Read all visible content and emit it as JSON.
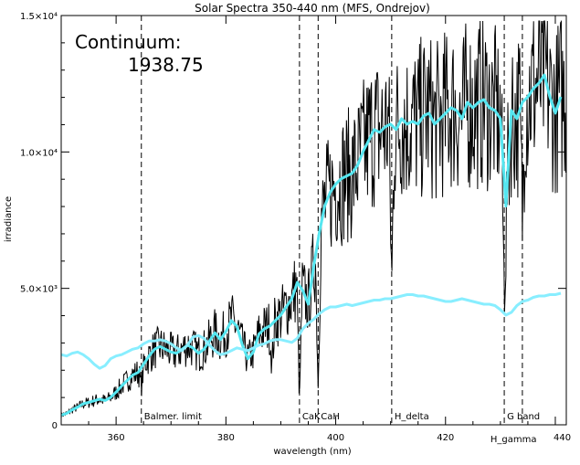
{
  "chart_data": {
    "type": "line",
    "title": "Solar Spectra 350-440 nm (MFS, Ondrejov)",
    "xlabel": "wavelength (nm)",
    "ylabel": "irradiance",
    "xlim": [
      350,
      442
    ],
    "ylim": [
      0,
      15000
    ],
    "xticks": [
      {
        "value": 360,
        "label": "360"
      },
      {
        "value": 380,
        "label": "380"
      },
      {
        "value": 400,
        "label": "400"
      },
      {
        "value": 420,
        "label": "420"
      },
      {
        "value": 440,
        "label": "440"
      }
    ],
    "yticks": [
      {
        "value": 0,
        "label": "0"
      },
      {
        "value": 5000,
        "label": "5.0×10³"
      },
      {
        "value": 10000,
        "label": "1.0×10⁴"
      },
      {
        "value": 15000,
        "label": "1.5×10⁴"
      }
    ],
    "annotation": {
      "line1": "Continuum:",
      "line2": "1938.75"
    },
    "markers": [
      {
        "x": 364.6,
        "label": "Balmer. limit"
      },
      {
        "x": 393.4,
        "label": "CaK"
      },
      {
        "x": 396.8,
        "label": "CaH"
      },
      {
        "x": 410.2,
        "label": "H_delta"
      },
      {
        "x": 430.7,
        "label": "G band"
      },
      {
        "x": 434.0,
        "label": "H_gamma"
      }
    ],
    "colors": {
      "raw": "#000000",
      "smoothed": "#55e6f0",
      "continuum": "#88eeff"
    },
    "series": [
      {
        "key": "smoothed",
        "x": [
          350,
          351,
          352,
          353,
          354,
          355,
          356,
          357,
          358,
          359,
          360,
          361,
          362,
          363,
          364,
          365,
          366,
          367,
          368,
          369,
          370,
          371,
          372,
          373,
          374,
          375,
          376,
          377,
          378,
          379,
          380,
          381,
          382,
          383,
          384,
          385,
          386,
          387,
          388,
          389,
          390,
          391,
          392,
          393,
          394,
          395,
          396,
          397,
          398,
          399,
          400,
          401,
          402,
          403,
          404,
          405,
          406,
          407,
          408,
          409,
          410,
          411,
          412,
          413,
          414,
          415,
          416,
          417,
          418,
          419,
          420,
          421,
          422,
          423,
          424,
          425,
          426,
          427,
          428,
          429,
          430,
          431,
          432,
          433,
          434,
          435,
          436,
          437,
          438,
          439,
          440,
          441
        ],
        "y": [
          350,
          420,
          550,
          650,
          770,
          820,
          880,
          940,
          890,
          1000,
          1200,
          1420,
          1620,
          1820,
          1920,
          2220,
          2520,
          2770,
          2870,
          2770,
          2670,
          2620,
          2770,
          2920,
          2820,
          2620,
          2770,
          3070,
          3370,
          3120,
          3420,
          3820,
          3620,
          2920,
          2420,
          2670,
          3320,
          3520,
          3620,
          3820,
          4020,
          4320,
          4620,
          5220,
          4920,
          4420,
          5820,
          7020,
          8020,
          8520,
          8820,
          9020,
          9120,
          9220,
          9520,
          10020,
          10420,
          10820,
          10720,
          10920,
          11020,
          10820,
          11220,
          11020,
          11120,
          11020,
          11320,
          11420,
          11020,
          11220,
          11420,
          11620,
          11520,
          11220,
          11820,
          11620,
          11820,
          11920,
          11620,
          11520,
          11220,
          8020,
          11520,
          11220,
          11820,
          12020,
          12320,
          12520,
          12820,
          12020,
          11420,
          12020
        ]
      },
      {
        "key": "continuum",
        "x": [
          350,
          351,
          352,
          353,
          354,
          355,
          356,
          357,
          358,
          359,
          360,
          361,
          362,
          363,
          364,
          365,
          366,
          367,
          368,
          369,
          370,
          371,
          372,
          373,
          374,
          375,
          376,
          377,
          378,
          379,
          380,
          381,
          382,
          383,
          384,
          385,
          386,
          387,
          388,
          389,
          390,
          391,
          392,
          393,
          394,
          395,
          396,
          397,
          398,
          399,
          400,
          401,
          402,
          403,
          404,
          405,
          406,
          407,
          408,
          409,
          410,
          411,
          412,
          413,
          414,
          415,
          416,
          417,
          418,
          419,
          420,
          421,
          422,
          423,
          424,
          425,
          426,
          427,
          428,
          429,
          430,
          431,
          432,
          433,
          434,
          435,
          436,
          437,
          438,
          439,
          440,
          441
        ],
        "y": [
          2570,
          2520,
          2620,
          2670,
          2570,
          2420,
          2220,
          2070,
          2170,
          2420,
          2520,
          2570,
          2670,
          2770,
          2820,
          2970,
          3070,
          3070,
          3120,
          3070,
          2970,
          2820,
          2720,
          2920,
          3220,
          3270,
          3170,
          2920,
          2720,
          2570,
          2620,
          2720,
          2820,
          2770,
          2720,
          2820,
          2920,
          2970,
          3070,
          3120,
          3120,
          3070,
          3020,
          3170,
          3520,
          3720,
          3870,
          4070,
          4220,
          4320,
          4320,
          4370,
          4420,
          4370,
          4420,
          4470,
          4520,
          4570,
          4570,
          4620,
          4620,
          4670,
          4720,
          4770,
          4770,
          4720,
          4720,
          4670,
          4620,
          4570,
          4520,
          4520,
          4570,
          4620,
          4570,
          4520,
          4470,
          4420,
          4420,
          4370,
          4220,
          4020,
          4120,
          4370,
          4520,
          4570,
          4670,
          4720,
          4720,
          4770,
          4770,
          4820
        ]
      }
    ]
  }
}
